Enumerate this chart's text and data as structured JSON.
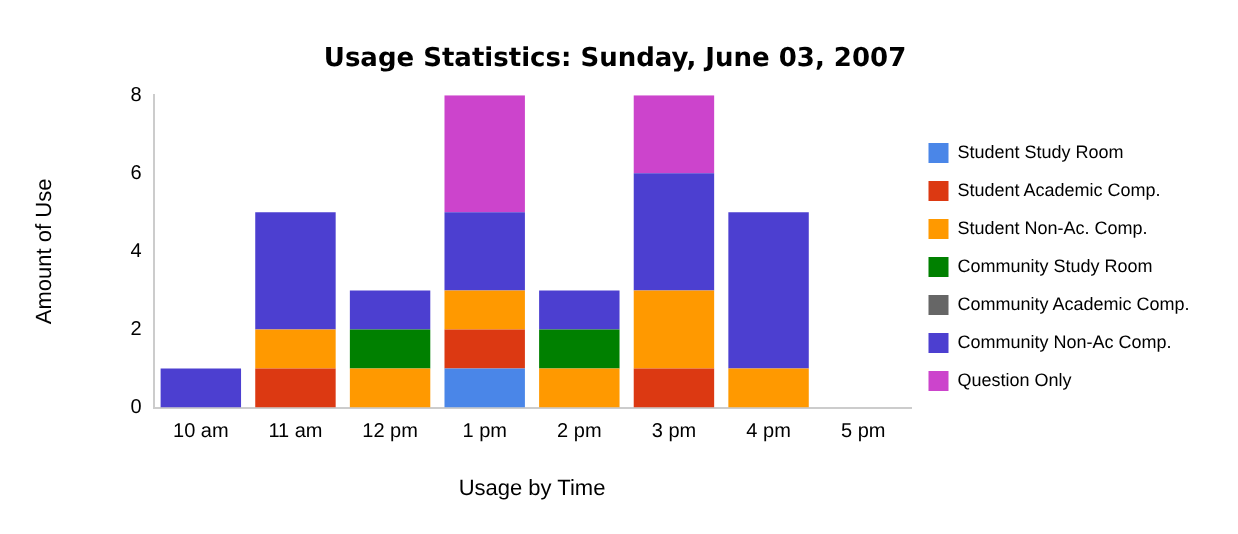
{
  "chart_data": {
    "type": "bar",
    "title": "Usage Statistics: Sunday, June 03, 2007",
    "xlabel": "Usage by Time",
    "ylabel": "Amount of Use",
    "categories": [
      "10 am",
      "11 am",
      "12 pm",
      "1 pm",
      "2 pm",
      "3 pm",
      "4 pm",
      "5 pm"
    ],
    "stacked": true,
    "ylim": [
      0,
      8
    ],
    "yticks": [
      0,
      2,
      4,
      6,
      8
    ],
    "grid": false,
    "legend": "right",
    "series": [
      {
        "name": "Student Study Room",
        "color": "#4a86e8",
        "values": [
          0,
          0,
          0,
          1,
          0,
          0,
          0,
          0
        ]
      },
      {
        "name": "Student Academic Comp.",
        "color": "#dc3912",
        "values": [
          0,
          1,
          0,
          1,
          0,
          1,
          0,
          0
        ]
      },
      {
        "name": "Student Non-Ac. Comp.",
        "color": "#ff9900",
        "values": [
          0,
          1,
          1,
          1,
          1,
          2,
          1,
          0
        ]
      },
      {
        "name": "Community Study Room",
        "color": "#008000",
        "values": [
          0,
          0,
          1,
          0,
          1,
          0,
          0,
          0
        ]
      },
      {
        "name": "Community Academic Comp.",
        "color": "#666666",
        "values": [
          0,
          0,
          0,
          0,
          0,
          0,
          0,
          0
        ]
      },
      {
        "name": "Community Non-Ac Comp.",
        "color": "#4c3fd0",
        "values": [
          1,
          3,
          1,
          2,
          1,
          3,
          4,
          0
        ]
      },
      {
        "name": "Question Only",
        "color": "#cc44cc",
        "values": [
          0,
          0,
          0,
          3,
          0,
          2,
          0,
          0
        ]
      }
    ]
  }
}
